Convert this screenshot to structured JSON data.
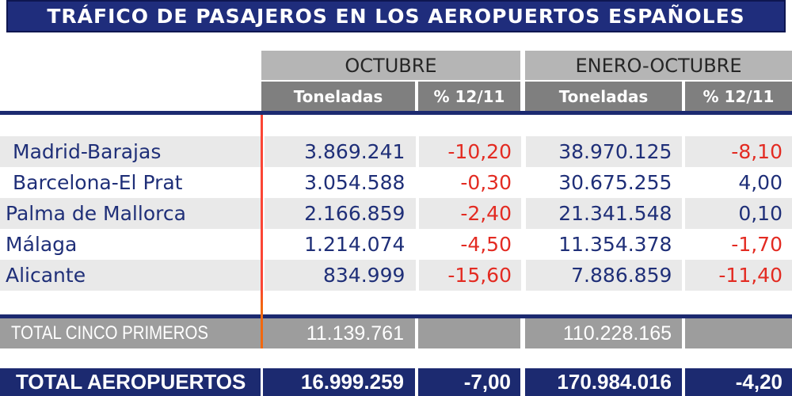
{
  "title": "TRÁFICO DE PASAJEROS EN LOS AEROPUERTOS ESPAÑOLES",
  "header": {
    "group_october": "OCTUBRE",
    "group_jan_october": "ENERO-OCTUBRE",
    "col_tonnes": "Toneladas",
    "col_pct": "% 12/11"
  },
  "airports": [
    {
      "name": "Madrid-Barajas",
      "oct_toneladas": "3.869.241",
      "oct_pct": "-10,20",
      "ene_toneladas": "38.970.125",
      "ene_pct": "-8,10"
    },
    {
      "name": "Barcelona-El Prat",
      "oct_toneladas": "3.054.588",
      "oct_pct": "-0,30",
      "ene_toneladas": "30.675.255",
      "ene_pct": "4,00"
    },
    {
      "name": "Palma de Mallorca",
      "oct_toneladas": "2.166.859",
      "oct_pct": "-2,40",
      "ene_toneladas": "21.341.548",
      "ene_pct": "0,10"
    },
    {
      "name": "Málaga",
      "oct_toneladas": "1.214.074",
      "oct_pct": "-4,50",
      "ene_toneladas": "11.354.378",
      "ene_pct": "-1,70"
    },
    {
      "name": "Alicante",
      "oct_toneladas": "834.999",
      "oct_pct": "-15,60",
      "ene_toneladas": "7.886.859",
      "ene_pct": "-11,40"
    }
  ],
  "totals": {
    "five": {
      "label": "TOTAL CINCO PRIMEROS",
      "oct_toneladas": "11.139.761",
      "oct_pct": "",
      "ene_toneladas": "110.228.165",
      "ene_pct": ""
    },
    "all": {
      "label": "TOTAL AEROPUERTOS",
      "oct_toneladas": "16.999.259",
      "oct_pct": "-7,00",
      "ene_toneladas": "170.984.016",
      "ene_pct": "-4,20"
    }
  },
  "colors": {
    "title_background": "#1f2d7c",
    "navy": "#1c2a70",
    "navy_text": "#1f2f78",
    "negative_red": "#e32b22",
    "divider_red": "#fb4535",
    "divider_orange": "#f2680f",
    "row_shade_gray": "#e9e9e9",
    "header_group_gray": "#b5b5b5",
    "header_sub_gray": "#7f7f7f",
    "total_row_gray": "#9d9d9d"
  }
}
